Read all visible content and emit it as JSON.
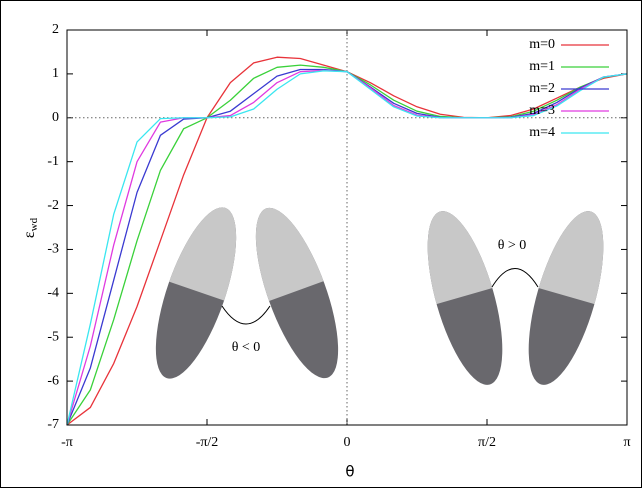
{
  "chart_data": {
    "type": "line",
    "x_label": "θ",
    "y_label": "ε",
    "y_label_subscript": "wd",
    "x": [
      -3.142,
      -2.88,
      -2.618,
      -2.356,
      -2.094,
      -1.833,
      -1.571,
      -1.309,
      -1.047,
      -0.785,
      -0.524,
      -0.262,
      0,
      0.262,
      0.524,
      0.785,
      1.047,
      1.309,
      1.571,
      1.833,
      2.094,
      2.356,
      2.618,
      2.88,
      3.142
    ],
    "series": [
      {
        "name": "m=0",
        "color": "#e8333a",
        "values": [
          -7,
          -6.6,
          -5.6,
          -4.3,
          -2.8,
          -1.3,
          0,
          0.8,
          1.25,
          1.38,
          1.35,
          1.2,
          1.05,
          0.8,
          0.5,
          0.25,
          0.08,
          0.01,
          0,
          0.05,
          0.2,
          0.45,
          0.7,
          0.9,
          1
        ]
      },
      {
        "name": "m=1",
        "color": "#3ad13a",
        "values": [
          -7,
          -6.2,
          -4.6,
          -2.8,
          -1.2,
          -0.25,
          0,
          0.4,
          0.9,
          1.15,
          1.2,
          1.15,
          1.05,
          0.75,
          0.4,
          0.15,
          0.03,
          0,
          0,
          0.02,
          0.15,
          0.4,
          0.7,
          0.92,
          1
        ]
      },
      {
        "name": "m=2",
        "color": "#3a3ad1",
        "values": [
          -7,
          -5.7,
          -3.7,
          -1.7,
          -0.4,
          -0.03,
          0,
          0.15,
          0.55,
          0.95,
          1.1,
          1.1,
          1.05,
          0.7,
          0.33,
          0.1,
          0.01,
          0,
          0,
          0.01,
          0.1,
          0.35,
          0.68,
          0.93,
          1
        ]
      },
      {
        "name": "m=3",
        "color": "#e03ae0",
        "values": [
          -7,
          -5.2,
          -2.9,
          -1.0,
          -0.1,
          0,
          0,
          0.05,
          0.35,
          0.8,
          1.05,
          1.08,
          1.05,
          0.68,
          0.28,
          0.06,
          0,
          0,
          0,
          0,
          0.07,
          0.3,
          0.65,
          0.93,
          1
        ]
      },
      {
        "name": "m=4",
        "color": "#3ae6f0",
        "values": [
          -7,
          -4.7,
          -2.2,
          -0.55,
          -0.02,
          0,
          0,
          0.02,
          0.2,
          0.65,
          1.0,
          1.07,
          1.05,
          0.65,
          0.25,
          0.04,
          0,
          0,
          0,
          0,
          0.05,
          0.27,
          0.62,
          0.93,
          1
        ]
      }
    ],
    "xlim": [
      -3.142,
      3.142
    ],
    "ylim": [
      -7,
      2
    ],
    "xticks": [
      {
        "value": -3.142,
        "label": "-π"
      },
      {
        "value": -1.571,
        "label": "-π/2"
      },
      0,
      {
        "value": 1.571,
        "label": "π/2"
      },
      {
        "value": 3.142,
        "label": "π"
      }
    ],
    "yticks": [
      -7,
      -6,
      -5,
      -4,
      -3,
      -2,
      -1,
      0,
      1,
      2
    ],
    "zero_lines": true,
    "legend": "upper right",
    "annotations": [
      "θ < 0",
      "θ > 0"
    ]
  }
}
